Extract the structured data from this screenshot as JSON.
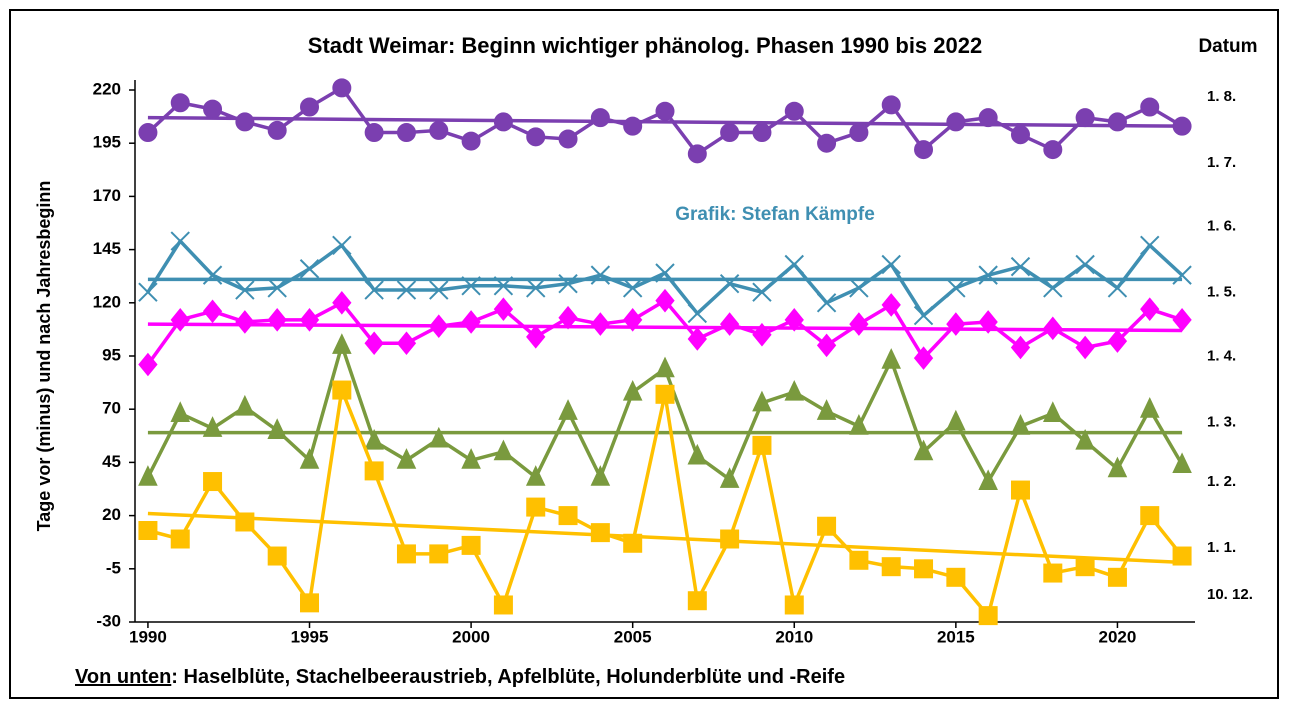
{
  "chart_data": {
    "type": "line",
    "title": "Stadt Weimar: Beginn wichtiger phänolog. Phasen 1990 bis 2022",
    "y_label": "Tage vor (minus) und nach Jahresbeginn",
    "y2_label": "Datum",
    "annotation": "Grafik: Stefan Kämpfe",
    "caption_lead": "Von unten",
    "caption_text": ": Haselblüte, Stachelbeeraustrieb, Apfelblüte, Holunderblüte und -Reife",
    "x": [
      1990,
      1991,
      1992,
      1993,
      1994,
      1995,
      1996,
      1997,
      1998,
      1999,
      2000,
      2001,
      2002,
      2003,
      2004,
      2005,
      2006,
      2007,
      2008,
      2009,
      2010,
      2011,
      2012,
      2013,
      2014,
      2015,
      2016,
      2017,
      2018,
      2019,
      2020,
      2021,
      2022
    ],
    "xlim": [
      1989.6,
      2022.4
    ],
    "xticks": [
      1990,
      1995,
      2000,
      2005,
      2010,
      2015,
      2020
    ],
    "ylim": [
      -30,
      220
    ],
    "yticks": [
      -30,
      -5,
      20,
      45,
      70,
      95,
      120,
      145,
      170,
      195,
      220
    ],
    "y2lim": [
      -30,
      220
    ],
    "y2ticks": [
      {
        "value": 213,
        "label": "1. 8."
      },
      {
        "value": 182,
        "label": "1. 7."
      },
      {
        "value": 152,
        "label": "1. 6."
      },
      {
        "value": 121,
        "label": "1. 5."
      },
      {
        "value": 91,
        "label": "1. 4."
      },
      {
        "value": 60,
        "label": "1. 3."
      },
      {
        "value": 32,
        "label": "1. 2."
      },
      {
        "value": 1,
        "label": "1. 1."
      },
      {
        "value": -21,
        "label": "10. 12."
      }
    ],
    "grid": false,
    "series": [
      {
        "color": "#7b3fb0",
        "marker": "circle",
        "trend": [
          207,
          203
        ],
        "values": [
          200,
          214,
          211,
          205,
          201,
          212,
          221,
          200,
          200,
          201,
          196,
          205,
          198,
          197,
          207,
          203,
          210,
          190,
          200,
          200,
          210,
          195,
          200,
          213,
          192,
          205,
          207,
          199,
          192,
          207,
          205,
          212,
          203
        ]
      },
      {
        "color": "#3f8fb2",
        "marker": "x",
        "trend": [
          131,
          131
        ],
        "values": [
          125,
          149,
          133,
          126,
          127,
          136,
          147,
          126,
          126,
          126,
          128,
          128,
          127,
          129,
          133,
          127,
          134,
          115,
          129,
          125,
          138,
          120,
          127,
          138,
          114,
          127,
          133,
          137,
          127,
          138,
          127,
          147,
          133
        ]
      },
      {
        "color": "#ff00ff",
        "marker": "diamond",
        "trend": [
          110,
          107
        ],
        "values": [
          91,
          112,
          116,
          111,
          112,
          112,
          120,
          101,
          101,
          109,
          111,
          117,
          104,
          113,
          110,
          112,
          121,
          103,
          110,
          105,
          112,
          100,
          110,
          119,
          94,
          110,
          111,
          99,
          108,
          99,
          102,
          117,
          112
        ]
      },
      {
        "color": "#7a9a3e",
        "marker": "triangle",
        "trend": [
          59,
          59
        ],
        "values": [
          38,
          68,
          61,
          71,
          60,
          46,
          100,
          55,
          46,
          56,
          46,
          50,
          38,
          69,
          38,
          78,
          89,
          48,
          37,
          73,
          78,
          69,
          62,
          93,
          50,
          64,
          36,
          62,
          68,
          55,
          42,
          70,
          44
        ]
      },
      {
        "color": "#ffc000",
        "marker": "square",
        "trend": [
          21,
          -2
        ],
        "values": [
          13,
          9,
          36,
          17,
          1,
          -21,
          79,
          41,
          2,
          2,
          6,
          -22,
          24,
          20,
          12,
          7,
          77,
          -20,
          9,
          53,
          -22,
          15,
          -1,
          -4,
          -5,
          -9,
          -27,
          32,
          -7,
          -4,
          -9,
          20,
          1
        ]
      }
    ]
  }
}
